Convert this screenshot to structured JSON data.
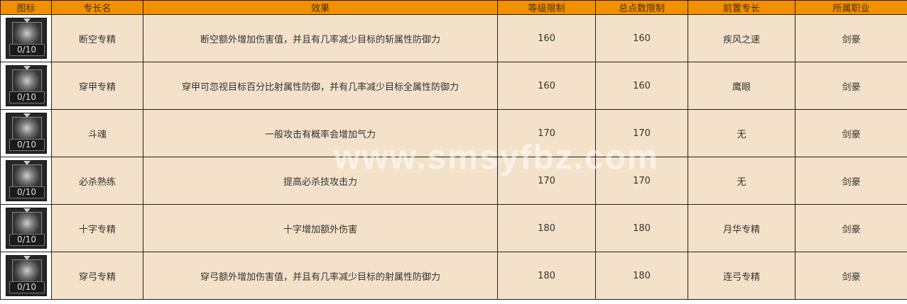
{
  "table": {
    "headers": [
      "图标",
      "专长名",
      "效果",
      "等级限制",
      "总点数限制",
      "前置专长",
      "所属职业"
    ],
    "rows": [
      {
        "icon": "slash-skill-icon",
        "level_text": "0/10",
        "name": "断空专精",
        "effect": "断空额外增加伤害值，并且有几率减少目标的斩属性防御力",
        "level_limit": "160",
        "total_points": "160",
        "prerequisite": "疾风之速",
        "class": "剑豪"
      },
      {
        "icon": "pierce-skill-icon",
        "level_text": "0/10",
        "name": "穿甲专精",
        "effect": "穿甲可忽视目标百分比射属性防御，并有几率减少目标全属性防御力",
        "level_limit": "160",
        "total_points": "160",
        "prerequisite": "鹰眼",
        "class": "剑豪"
      },
      {
        "icon": "fighter-skill-icon",
        "level_text": "0/10",
        "name": "斗魂",
        "effect": "一般攻击有概率会增加气力",
        "level_limit": "170",
        "total_points": "170",
        "prerequisite": "无",
        "class": "剑豪"
      },
      {
        "icon": "critical-skill-icon",
        "level_text": "0/10",
        "name": "必杀熟练",
        "effect": "提高必杀技攻击力",
        "level_limit": "170",
        "total_points": "170",
        "prerequisite": "无",
        "class": "剑豪"
      },
      {
        "icon": "cross-skill-icon",
        "level_text": "0/10",
        "name": "十字专精",
        "effect": "十字增加额外伤害",
        "level_limit": "180",
        "total_points": "180",
        "prerequisite": "月华专精",
        "class": "剑豪"
      },
      {
        "icon": "bow-skill-icon",
        "level_text": "0/10",
        "name": "穿弓专精",
        "effect": "穿弓额外增加伤害值，并且有几率减少目标的射属性防御力",
        "level_limit": "180",
        "total_points": "180",
        "prerequisite": "连弓专精",
        "class": "剑豪"
      }
    ]
  },
  "watermark": "www.smsyfbz.com",
  "colors": {
    "header_bg": "#f39000",
    "cell_bg": "#f3e2c9"
  }
}
